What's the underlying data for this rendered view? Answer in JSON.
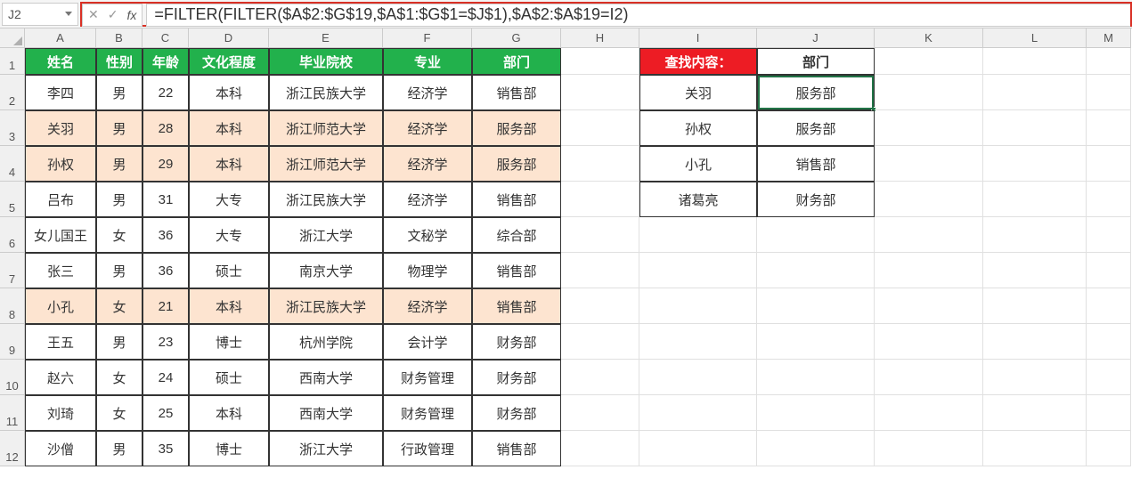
{
  "nameBox": "J2",
  "formula": "=FILTER(FILTER($A$2:$G$19,$A$1:$G$1=$J$1),$A$2:$A$19=I2)",
  "columns": [
    "A",
    "B",
    "C",
    "D",
    "E",
    "F",
    "G",
    "H",
    "I",
    "J",
    "K",
    "L",
    "M"
  ],
  "colWidths": [
    "wA",
    "wB",
    "wC",
    "wD",
    "wE",
    "wF",
    "wG",
    "wH",
    "wI",
    "wJ",
    "wK",
    "wL",
    "wM"
  ],
  "rowNumbers": [
    1,
    2,
    3,
    4,
    5,
    6,
    7,
    8,
    9,
    10,
    11,
    12
  ],
  "mainHeaders": [
    "姓名",
    "性别",
    "年龄",
    "文化程度",
    "毕业院校",
    "专业",
    "部门"
  ],
  "mainRows": [
    {
      "cells": [
        "李四",
        "男",
        "22",
        "本科",
        "浙江民族大学",
        "经济学",
        "销售部"
      ],
      "hl": false
    },
    {
      "cells": [
        "关羽",
        "男",
        "28",
        "本科",
        "浙江师范大学",
        "经济学",
        "服务部"
      ],
      "hl": true
    },
    {
      "cells": [
        "孙权",
        "男",
        "29",
        "本科",
        "浙江师范大学",
        "经济学",
        "服务部"
      ],
      "hl": true
    },
    {
      "cells": [
        "吕布",
        "男",
        "31",
        "大专",
        "浙江民族大学",
        "经济学",
        "销售部"
      ],
      "hl": false
    },
    {
      "cells": [
        "女儿国王",
        "女",
        "36",
        "大专",
        "浙江大学",
        "文秘学",
        "综合部"
      ],
      "hl": false
    },
    {
      "cells": [
        "张三",
        "男",
        "36",
        "硕士",
        "南京大学",
        "物理学",
        "销售部"
      ],
      "hl": false
    },
    {
      "cells": [
        "小孔",
        "女",
        "21",
        "本科",
        "浙江民族大学",
        "经济学",
        "销售部"
      ],
      "hl": true
    },
    {
      "cells": [
        "王五",
        "男",
        "23",
        "博士",
        "杭州学院",
        "会计学",
        "财务部"
      ],
      "hl": false
    },
    {
      "cells": [
        "赵六",
        "女",
        "24",
        "硕士",
        "西南大学",
        "财务管理",
        "财务部"
      ],
      "hl": false
    },
    {
      "cells": [
        "刘琦",
        "女",
        "25",
        "本科",
        "西南大学",
        "财务管理",
        "财务部"
      ],
      "hl": false
    },
    {
      "cells": [
        "沙僧",
        "男",
        "35",
        "博士",
        "浙江大学",
        "行政管理",
        "销售部"
      ],
      "hl": false
    }
  ],
  "lookupHeader": {
    "label": "查找内容：",
    "result": "部门"
  },
  "lookupRows": [
    {
      "name": "关羽",
      "dept": "服务部"
    },
    {
      "name": "孙权",
      "dept": "服务部"
    },
    {
      "name": "小孔",
      "dept": "销售部"
    },
    {
      "name": "诸葛亮",
      "dept": "财务部"
    }
  ],
  "activeCell": {
    "row": 2,
    "col": "J"
  },
  "colors": {
    "headerGreen": "#22b14c",
    "headerRed": "#ed1c24",
    "peach": "#fde4d0",
    "formulaOutline": "#d93025",
    "selection": "#217346"
  }
}
